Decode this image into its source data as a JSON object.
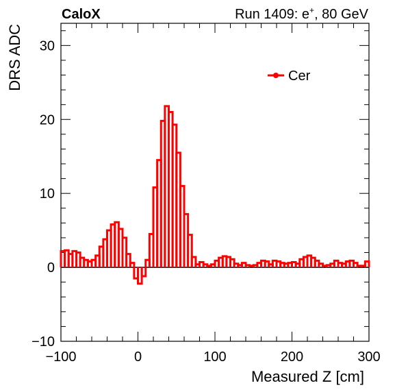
{
  "header": {
    "experiment": "CaloX",
    "run_info_prefix": "Run 1409: e",
    "run_info_superscript": "+",
    "run_info_suffix": ", 80 GeV"
  },
  "chart_data": {
    "type": "line",
    "style": "step-histogram",
    "xlabel": "Measured Z [cm]",
    "ylabel": "DRS ADC",
    "xlim": [
      -100,
      300
    ],
    "ylim": [
      -10,
      33
    ],
    "x_ticks": [
      -100,
      0,
      100,
      200,
      300
    ],
    "x_tick_labels": [
      "−100",
      "0",
      "100",
      "200",
      "300"
    ],
    "y_ticks": [
      -10,
      0,
      10,
      20,
      30
    ],
    "y_tick_labels": [
      "−10",
      "0",
      "10",
      "20",
      "30"
    ],
    "zero_line": true,
    "grid": false,
    "legend": {
      "placement": "top-right",
      "entries": [
        {
          "label": "Cer",
          "color": "#ff0000"
        }
      ]
    },
    "series": [
      {
        "name": "Cer",
        "color": "#ff0000",
        "bin_edges": [
          -100,
          -95,
          -90,
          -85,
          -80,
          -75,
          -70,
          -65,
          -60,
          -55,
          -50,
          -45,
          -40,
          -35,
          -30,
          -25,
          -20,
          -15,
          -10,
          -5,
          0,
          5,
          10,
          15,
          20,
          25,
          30,
          35,
          40,
          45,
          50,
          55,
          60,
          65,
          70,
          75,
          80,
          85,
          90,
          95,
          100,
          105,
          110,
          115,
          120,
          125,
          130,
          135,
          140,
          145,
          150,
          155,
          160,
          165,
          170,
          175,
          180,
          185,
          190,
          195,
          200,
          205,
          210,
          215,
          220,
          225,
          230,
          235,
          240,
          245,
          250,
          255,
          260,
          265,
          270,
          275,
          280,
          285,
          290,
          295,
          300
        ],
        "values": [
          2.2,
          2.3,
          1.8,
          2.2,
          2.0,
          1.3,
          1.0,
          0.8,
          1.0,
          1.6,
          2.8,
          3.8,
          5.0,
          5.8,
          6.1,
          5.2,
          4.0,
          1.8,
          0.6,
          -1.5,
          -2.2,
          -1.2,
          1.0,
          4.5,
          10.8,
          14.5,
          19.8,
          21.8,
          21.0,
          19.3,
          15.5,
          11.0,
          7.2,
          4.4,
          1.4,
          0.4,
          0.7,
          0.4,
          0.2,
          0.4,
          0.9,
          1.3,
          1.5,
          1.4,
          1.1,
          0.5,
          0.3,
          0.6,
          0.3,
          0.2,
          0.3,
          0.6,
          0.9,
          0.8,
          0.4,
          0.9,
          0.8,
          0.6,
          0.5,
          0.6,
          0.7,
          0.5,
          1.1,
          1.4,
          1.6,
          1.3,
          0.9,
          0.5,
          0.2,
          0.3,
          0.5,
          0.9,
          0.6,
          0.5,
          0.8,
          0.9,
          0.6,
          0.2,
          0.2,
          0.8
        ]
      }
    ]
  }
}
